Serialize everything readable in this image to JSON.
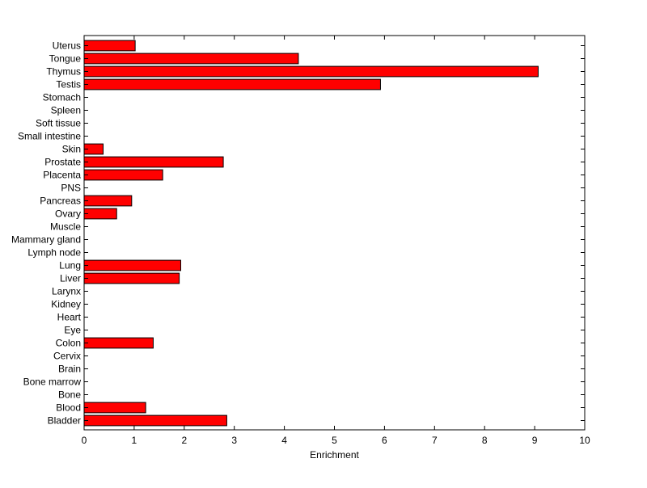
{
  "chart_data": {
    "type": "bar",
    "orientation": "horizontal",
    "xlabel": "Enrichment",
    "ylabel": "",
    "xlim": [
      0,
      10
    ],
    "xticks": [
      0,
      1,
      2,
      3,
      4,
      5,
      6,
      7,
      8,
      9,
      10
    ],
    "grid": false,
    "bar_color": "#ff0000",
    "bar_edge_color": "#000000",
    "categories": [
      "Uterus",
      "Tongue",
      "Thymus",
      "Testis",
      "Stomach",
      "Spleen",
      "Soft tissue",
      "Small intestine",
      "Skin",
      "Prostate",
      "Placenta",
      "PNS",
      "Pancreas",
      "Ovary",
      "Muscle",
      "Mammary gland",
      "Lymph node",
      "Lung",
      "Liver",
      "Larynx",
      "Kidney",
      "Heart",
      "Eye",
      "Colon",
      "Cervix",
      "Brain",
      "Bone marrow",
      "Bone",
      "Blood",
      "Bladder"
    ],
    "values": [
      1.02,
      4.28,
      9.07,
      5.92,
      0,
      0,
      0,
      0,
      0.38,
      2.78,
      1.57,
      0,
      0.95,
      0.65,
      0,
      0,
      0,
      1.93,
      1.9,
      0,
      0,
      0,
      0,
      1.38,
      0,
      0,
      0,
      0,
      1.23,
      2.85
    ]
  }
}
